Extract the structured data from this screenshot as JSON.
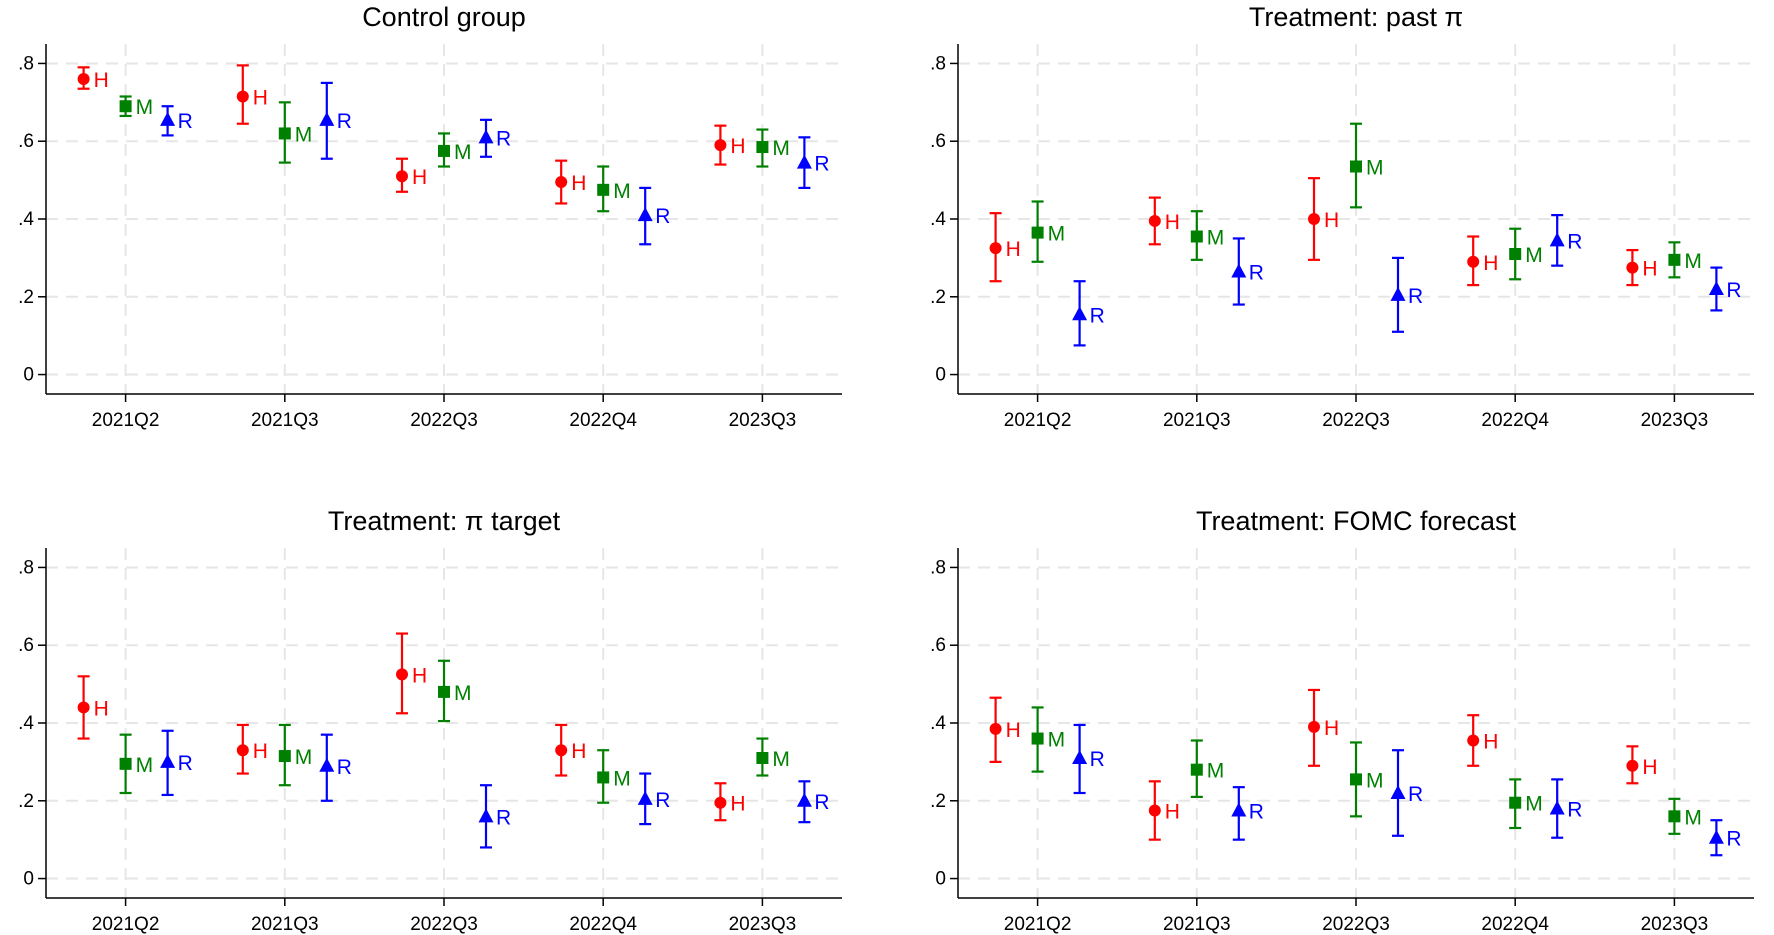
{
  "colors": {
    "H": "#ff0000",
    "M": "#008000",
    "R": "#0000ff"
  },
  "chart_data": [
    {
      "type": "scatter",
      "title": "Control group",
      "categories": [
        "2021Q2",
        "2021Q3",
        "2022Q3",
        "2022Q4",
        "2023Q3"
      ],
      "yticks": [
        0,
        0.2,
        0.4,
        0.6,
        0.8
      ],
      "ytick_labels": [
        "0",
        ".2",
        ".4",
        ".6",
        ".8"
      ],
      "ylim": [
        -0.05,
        0.85
      ],
      "grid": true,
      "series": [
        {
          "name": "H",
          "marker": "circle",
          "values": [
            0.76,
            0.715,
            0.51,
            0.495,
            0.59
          ],
          "lower": [
            0.735,
            0.645,
            0.47,
            0.44,
            0.54
          ],
          "upper": [
            0.79,
            0.795,
            0.555,
            0.55,
            0.64
          ]
        },
        {
          "name": "M",
          "marker": "square",
          "values": [
            0.69,
            0.62,
            0.575,
            0.475,
            0.585
          ],
          "lower": [
            0.665,
            0.545,
            0.535,
            0.42,
            0.535
          ],
          "upper": [
            0.715,
            0.7,
            0.62,
            0.535,
            0.63
          ]
        },
        {
          "name": "R",
          "marker": "triangle",
          "values": [
            0.655,
            0.655,
            0.61,
            0.41,
            0.545
          ],
          "lower": [
            0.615,
            0.555,
            0.56,
            0.335,
            0.48
          ],
          "upper": [
            0.69,
            0.75,
            0.655,
            0.48,
            0.61
          ]
        }
      ]
    },
    {
      "type": "scatter",
      "title": "Treatment: past π",
      "categories": [
        "2021Q2",
        "2021Q3",
        "2022Q3",
        "2022Q4",
        "2023Q3"
      ],
      "yticks": [
        0,
        0.2,
        0.4,
        0.6,
        0.8
      ],
      "ytick_labels": [
        "0",
        ".2",
        ".4",
        ".6",
        ".8"
      ],
      "ylim": [
        -0.05,
        0.85
      ],
      "grid": true,
      "series": [
        {
          "name": "H",
          "marker": "circle",
          "values": [
            0.325,
            0.395,
            0.4,
            0.29,
            0.275
          ],
          "lower": [
            0.24,
            0.335,
            0.295,
            0.23,
            0.23
          ],
          "upper": [
            0.415,
            0.455,
            0.505,
            0.355,
            0.32
          ]
        },
        {
          "name": "M",
          "marker": "square",
          "values": [
            0.365,
            0.355,
            0.535,
            0.31,
            0.295
          ],
          "lower": [
            0.29,
            0.295,
            0.43,
            0.245,
            0.25
          ],
          "upper": [
            0.445,
            0.42,
            0.645,
            0.375,
            0.34
          ]
        },
        {
          "name": "R",
          "marker": "triangle",
          "values": [
            0.155,
            0.265,
            0.205,
            0.345,
            0.22
          ],
          "lower": [
            0.075,
            0.18,
            0.11,
            0.28,
            0.165
          ],
          "upper": [
            0.24,
            0.35,
            0.3,
            0.41,
            0.275
          ]
        }
      ]
    },
    {
      "type": "scatter",
      "title": "Treatment: π target",
      "categories": [
        "2021Q2",
        "2021Q3",
        "2022Q3",
        "2022Q4",
        "2023Q3"
      ],
      "yticks": [
        0,
        0.2,
        0.4,
        0.6,
        0.8
      ],
      "ytick_labels": [
        "0",
        ".2",
        ".4",
        ".6",
        ".8"
      ],
      "ylim": [
        -0.05,
        0.85
      ],
      "grid": true,
      "series": [
        {
          "name": "H",
          "marker": "circle",
          "values": [
            0.44,
            0.33,
            0.525,
            0.33,
            0.195
          ],
          "lower": [
            0.36,
            0.27,
            0.425,
            0.265,
            0.15
          ],
          "upper": [
            0.52,
            0.395,
            0.63,
            0.395,
            0.245
          ]
        },
        {
          "name": "M",
          "marker": "square",
          "values": [
            0.295,
            0.315,
            0.48,
            0.26,
            0.31
          ],
          "lower": [
            0.22,
            0.24,
            0.405,
            0.195,
            0.265
          ],
          "upper": [
            0.37,
            0.395,
            0.56,
            0.33,
            0.36
          ]
        },
        {
          "name": "R",
          "marker": "triangle",
          "values": [
            0.3,
            0.29,
            0.16,
            0.205,
            0.2
          ],
          "lower": [
            0.215,
            0.2,
            0.08,
            0.14,
            0.145
          ],
          "upper": [
            0.38,
            0.37,
            0.24,
            0.27,
            0.25
          ]
        }
      ]
    },
    {
      "type": "scatter",
      "title": "Treatment: FOMC forecast",
      "categories": [
        "2021Q2",
        "2021Q3",
        "2022Q3",
        "2022Q4",
        "2023Q3"
      ],
      "yticks": [
        0,
        0.2,
        0.4,
        0.6,
        0.8
      ],
      "ytick_labels": [
        "0",
        ".2",
        ".4",
        ".6",
        ".8"
      ],
      "ylim": [
        -0.05,
        0.85
      ],
      "grid": true,
      "series": [
        {
          "name": "H",
          "marker": "circle",
          "values": [
            0.385,
            0.175,
            0.39,
            0.355,
            0.29
          ],
          "lower": [
            0.3,
            0.1,
            0.29,
            0.29,
            0.245
          ],
          "upper": [
            0.465,
            0.25,
            0.485,
            0.42,
            0.34
          ]
        },
        {
          "name": "M",
          "marker": "square",
          "values": [
            0.36,
            0.28,
            0.255,
            0.195,
            0.16
          ],
          "lower": [
            0.275,
            0.21,
            0.16,
            0.13,
            0.115
          ],
          "upper": [
            0.44,
            0.355,
            0.35,
            0.255,
            0.205
          ]
        },
        {
          "name": "R",
          "marker": "triangle",
          "values": [
            0.31,
            0.175,
            0.22,
            0.18,
            0.105
          ],
          "lower": [
            0.22,
            0.1,
            0.11,
            0.105,
            0.06
          ],
          "upper": [
            0.395,
            0.235,
            0.33,
            0.255,
            0.15
          ]
        }
      ]
    }
  ]
}
